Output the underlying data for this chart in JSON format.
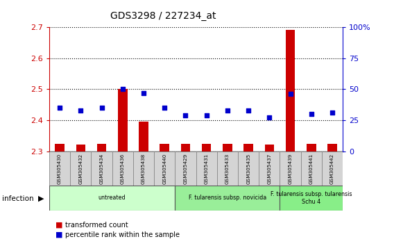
{
  "title": "GDS3298 / 227234_at",
  "samples": [
    "GSM305430",
    "GSM305432",
    "GSM305434",
    "GSM305436",
    "GSM305438",
    "GSM305440",
    "GSM305429",
    "GSM305431",
    "GSM305433",
    "GSM305435",
    "GSM305437",
    "GSM305439",
    "GSM305441",
    "GSM305442"
  ],
  "transformed_count": [
    2.325,
    2.322,
    2.325,
    2.5,
    2.395,
    2.325,
    2.325,
    2.325,
    2.325,
    2.325,
    2.322,
    2.69,
    2.325,
    2.325
  ],
  "percentile_rank": [
    35,
    33,
    35,
    50,
    47,
    35,
    29,
    29,
    33,
    33,
    27,
    46,
    30,
    31
  ],
  "ylim_left": [
    2.3,
    2.7
  ],
  "ylim_right": [
    0,
    100
  ],
  "yticks_left": [
    2.3,
    2.4,
    2.5,
    2.6,
    2.7
  ],
  "yticks_right": [
    0,
    25,
    50,
    75,
    100
  ],
  "bar_color": "#cc0000",
  "scatter_color": "#0000cc",
  "group_labels": [
    "untreated",
    "F. tularensis subsp. novicida",
    "F. tularensis subsp. tularensis\nSchu 4"
  ],
  "group_ranges": [
    [
      0,
      5
    ],
    [
      6,
      10
    ],
    [
      11,
      13
    ]
  ],
  "group_colors_light": [
    "#ccffcc",
    "#99ee99",
    "#88ee88"
  ],
  "infection_label": "infection",
  "legend_items": [
    "transformed count",
    "percentile rank within the sample"
  ],
  "grid_color": "#000000",
  "tick_label_color_left": "#cc0000",
  "tick_label_color_right": "#0000cc",
  "sample_box_color": "#d4d4d4"
}
